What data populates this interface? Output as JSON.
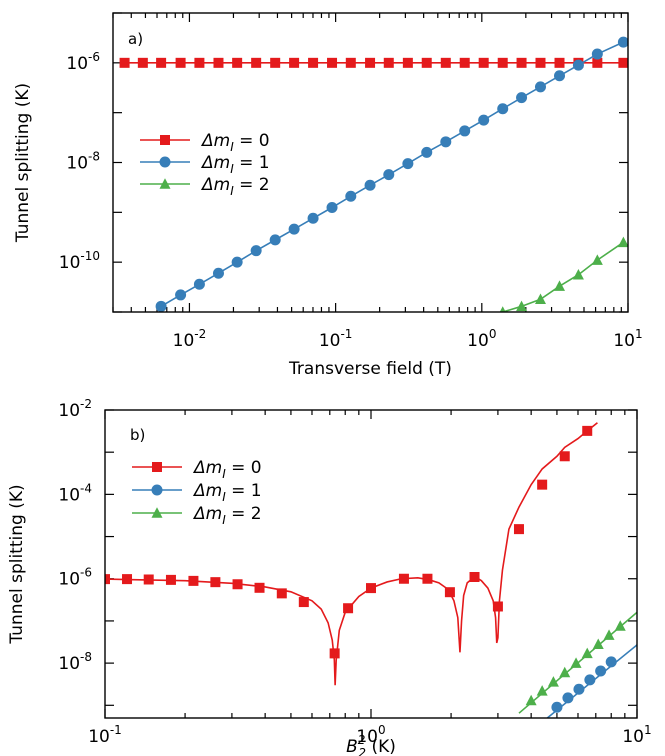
{
  "chart_data": [
    {
      "type": "line",
      "panel_label": "a)",
      "xlabel": "Transverse field (T)",
      "ylabel": "Tunnel splitting (K)",
      "xscale": "log",
      "yscale": "log",
      "xlim": [
        0.003,
        10
      ],
      "ylim": [
        1e-11,
        1e-05
      ],
      "x_ticks": [
        {
          "base": "10",
          "exp": "-2",
          "value": 0.01
        },
        {
          "base": "10",
          "exp": "-1",
          "value": 0.1
        },
        {
          "base": "10",
          "exp": "0",
          "value": 1
        },
        {
          "base": "10",
          "exp": "1",
          "value": 10
        }
      ],
      "y_ticks": [
        {
          "base": "10",
          "exp": "-6",
          "value": 1e-06
        },
        {
          "base": "10",
          "exp": "-8",
          "value": 1e-08
        },
        {
          "base": "10",
          "exp": "-10",
          "value": 1e-10
        }
      ],
      "legend_position": "middle-left",
      "series": [
        {
          "name": "Δm",
          "sub": "I",
          "suffix": " = 0",
          "color": "#e41a1c",
          "marker": "square",
          "x": [
            0.0036,
            0.0048,
            0.0064,
            0.0087,
            0.0117,
            0.0158,
            0.0212,
            0.0286,
            0.0386,
            0.052,
            0.0701,
            0.0945,
            0.127,
            0.172,
            0.231,
            0.312,
            0.42,
            0.567,
            0.764,
            1.03,
            1.39,
            1.87,
            2.52,
            3.4,
            4.58,
            6.17,
            9.3
          ],
          "y": [
            1e-06,
            1e-06,
            1e-06,
            1e-06,
            1e-06,
            1e-06,
            1e-06,
            1e-06,
            1e-06,
            1e-06,
            1e-06,
            1e-06,
            1e-06,
            1e-06,
            1e-06,
            1e-06,
            1e-06,
            1e-06,
            1e-06,
            1e-06,
            1e-06,
            1e-06,
            1e-06,
            1e-06,
            1e-06,
            1e-06,
            1e-06
          ]
        },
        {
          "name": "Δm",
          "sub": "I",
          "suffix": " = 1",
          "color": "#377eb8",
          "marker": "circle",
          "x": [
            0.0064,
            0.0087,
            0.0117,
            0.0158,
            0.0212,
            0.0286,
            0.0386,
            0.052,
            0.0701,
            0.0945,
            0.127,
            0.172,
            0.231,
            0.312,
            0.42,
            0.567,
            0.764,
            1.03,
            1.39,
            1.87,
            2.52,
            3.4,
            4.58,
            6.17,
            9.3
          ],
          "y": [
            1.3e-11,
            2.2e-11,
            3.6e-11,
            6e-11,
            1e-10,
            1.7e-10,
            2.8e-10,
            4.6e-10,
            7.6e-10,
            1.25e-09,
            2.1e-09,
            3.5e-09,
            5.7e-09,
            9.5e-09,
            1.6e-08,
            2.6e-08,
            4.3e-08,
            7.1e-08,
            1.2e-07,
            2e-07,
            3.3e-07,
            5.5e-07,
            9e-07,
            1.5e-06,
            2.6e-06
          ]
        },
        {
          "name": "Δm",
          "sub": "I",
          "suffix": " = 2",
          "color": "#4daf4a",
          "marker": "triangle",
          "x": [
            1.39,
            1.87,
            2.52,
            3.4,
            4.58,
            6.17,
            9.3
          ],
          "y": [
            1e-11,
            1.3e-11,
            1.8e-11,
            3.3e-11,
            5.6e-11,
            1.1e-10,
            2.5e-10
          ]
        }
      ]
    },
    {
      "type": "line",
      "panel_label": "b)",
      "xlabel": "B",
      "xlabel_sub": "2",
      "xlabel_sup": "2",
      "xlabel_suffix": " (K)",
      "ylabel": "Tunnel splitting (K)",
      "xscale": "log",
      "yscale": "log",
      "xlim": [
        0.1,
        10
      ],
      "ylim": [
        5e-10,
        0.01
      ],
      "x_ticks": [
        {
          "base": "10",
          "exp": "-1",
          "value": 0.1
        },
        {
          "base": "10",
          "exp": "0",
          "value": 1
        },
        {
          "base": "10",
          "exp": "1",
          "value": 10
        }
      ],
      "y_ticks": [
        {
          "base": "10",
          "exp": "-2",
          "value": 0.01
        },
        {
          "base": "10",
          "exp": "-4",
          "value": 0.0001
        },
        {
          "base": "10",
          "exp": "-6",
          "value": 1e-06
        },
        {
          "base": "10",
          "exp": "-8",
          "value": 1e-08
        }
      ],
      "legend_position": "top-left",
      "series": [
        {
          "name": "Δm",
          "sub": "I",
          "suffix": " = 0",
          "color": "#e41a1c",
          "marker": "square",
          "x": [
            0.1,
            0.121,
            0.146,
            0.177,
            0.215,
            0.26,
            0.315,
            0.381,
            0.462,
            0.559,
            0.73,
            0.82,
            1.0,
            1.33,
            1.63,
            1.98,
            2.45,
            3.0,
            3.6,
            4.4,
            5.35,
            6.5
          ],
          "y": [
            9.8e-07,
            9.8e-07,
            9.6e-07,
            9.4e-07,
            8.9e-07,
            8.3e-07,
            7.4e-07,
            6.1e-07,
            4.5e-07,
            2.8e-07,
            1.7e-08,
            2e-07,
            6e-07,
            1e-06,
            1e-06,
            4.8e-07,
            1.1e-06,
            2.2e-07,
            1.5e-05,
            0.00017,
            0.0008,
            0.0032
          ],
          "curve_x": [
            0.1,
            0.2,
            0.3,
            0.4,
            0.5,
            0.6,
            0.65,
            0.69,
            0.715,
            0.728,
            0.733,
            0.74,
            0.76,
            0.8,
            0.9,
            1.0,
            1.15,
            1.3,
            1.5,
            1.65,
            1.8,
            1.95,
            2.05,
            2.12,
            2.16,
            2.19,
            2.23,
            2.3,
            2.4,
            2.5,
            2.6,
            2.75,
            2.88,
            2.94,
            2.97,
            3.0,
            3.04,
            3.12,
            3.3,
            3.6,
            4.0,
            4.4,
            5.0,
            5.35,
            6.0,
            6.5,
            7.1
          ],
          "curve_y": [
            9.8e-07,
            9e-07,
            7.8e-07,
            6.4e-07,
            4.9e-07,
            3e-07,
            1.9e-07,
            9e-08,
            3.5e-08,
            1.2e-08,
            3e-09,
            1.2e-08,
            6e-08,
            1.6e-07,
            3.8e-07,
            6e-07,
            8.4e-07,
            1e-06,
            1.05e-06,
            9.5e-07,
            8e-07,
            5.6e-07,
            3e-07,
            1.2e-07,
            1.8e-08,
            1e-07,
            4e-07,
            8e-07,
            1e-06,
            1.05e-06,
            9e-07,
            6e-07,
            3e-07,
            1.2e-07,
            3e-08,
            4e-08,
            3e-07,
            1.6e-06,
            1.5e-05,
            5e-05,
            0.00017,
            0.0004,
            0.0008,
            0.0013,
            0.0021,
            0.0032,
            0.005
          ]
        },
        {
          "name": "Δm",
          "sub": "I",
          "suffix": " = 1",
          "color": "#377eb8",
          "marker": "circle",
          "x": [
            5.0,
            5.5,
            6.05,
            6.65,
            7.3,
            8.0
          ],
          "y": [
            9e-10,
            1.5e-09,
            2.4e-09,
            4e-09,
            6.5e-09,
            1.07e-08
          ],
          "curve_x": [
            4.6,
            10.0
          ],
          "curve_y": [
            5e-10,
            2.7e-08
          ]
        },
        {
          "name": "Δm",
          "sub": "I",
          "suffix": " = 2",
          "color": "#4daf4a",
          "marker": "triangle",
          "x": [
            4.0,
            4.4,
            4.85,
            5.35,
            5.9,
            6.5,
            7.15,
            7.85,
            8.65
          ],
          "y": [
            1.3e-09,
            2.2e-09,
            3.6e-09,
            6e-09,
            1e-08,
            1.7e-08,
            2.8e-08,
            4.6e-08,
            7.6e-08
          ],
          "curve_x": [
            3.6,
            10.0
          ],
          "curve_y": [
            6.5e-10,
            1.6e-07
          ]
        }
      ]
    }
  ]
}
